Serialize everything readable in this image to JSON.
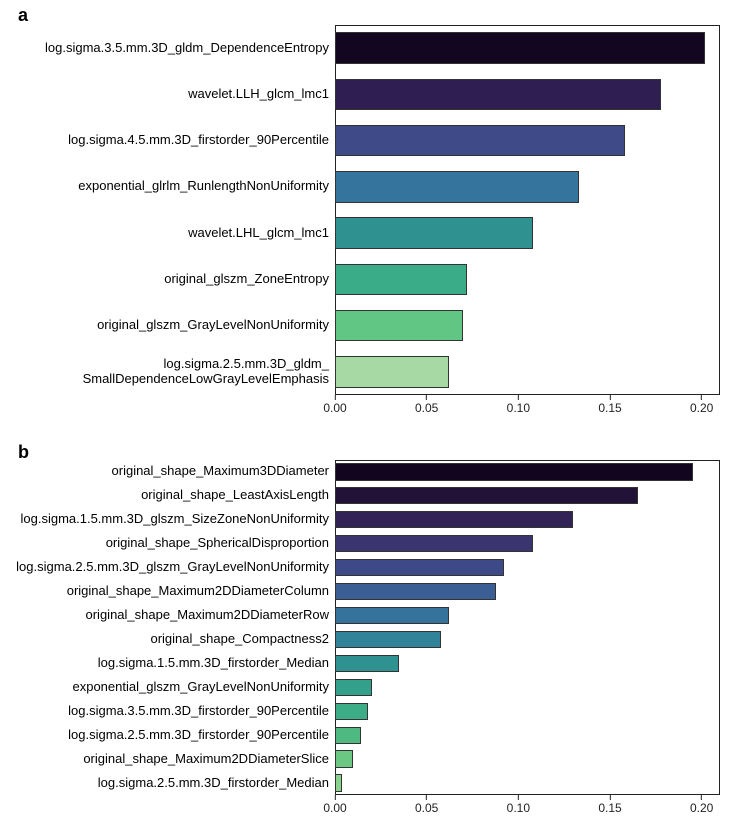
{
  "panel_a": {
    "label": "a",
    "type": "bar",
    "xlim": [
      0,
      0.21
    ],
    "xticks": [
      0.0,
      0.05,
      0.1,
      0.15,
      0.2
    ],
    "xtick_labels": [
      "0.00",
      "0.05",
      "0.10",
      "0.15",
      "0.20"
    ],
    "label_fontsize": 13,
    "tick_fontsize": 12,
    "bar_border_color": "#333333",
    "background_color": "#ffffff",
    "bars": [
      {
        "label": "log.sigma.3.5.mm.3D_gldm_DependenceEntropy",
        "value": 0.202,
        "color": "#130621"
      },
      {
        "label": "wavelet.LLH_glcm_lmc1",
        "value": 0.178,
        "color": "#2f1e52"
      },
      {
        "label": "log.sigma.4.5.mm.3D_firstorder_90Percentile",
        "value": 0.158,
        "color": "#3f4a88"
      },
      {
        "label": "exponential_glrlm_RunlengthNonUniformity",
        "value": 0.133,
        "color": "#34749d"
      },
      {
        "label": "wavelet.LHL_glcm_lmc1",
        "value": 0.108,
        "color": "#2f9291"
      },
      {
        "label": "original_glszm_ZoneEntropy",
        "value": 0.072,
        "color": "#3aac87"
      },
      {
        "label": "original_glszm_GrayLevelNonUniformity",
        "value": 0.07,
        "color": "#61c583"
      },
      {
        "label": "log.sigma.2.5.mm.3D_gldm_\nSmallDependenceLowGrayLevelEmphasis",
        "value": 0.062,
        "color": "#a6d9a3"
      }
    ]
  },
  "panel_b": {
    "label": "b",
    "type": "bar",
    "xlim": [
      0,
      0.21
    ],
    "xticks": [
      0.0,
      0.05,
      0.1,
      0.15,
      0.2
    ],
    "xtick_labels": [
      "0.00",
      "0.05",
      "0.10",
      "0.15",
      "0.20"
    ],
    "label_fontsize": 13,
    "tick_fontsize": 12,
    "bar_border_color": "#333333",
    "background_color": "#ffffff",
    "bars": [
      {
        "label": "original_shape_Maximum3DDiameter",
        "value": 0.195,
        "color": "#120520"
      },
      {
        "label": "original_shape_LeastAxisLength",
        "value": 0.165,
        "color": "#231238"
      },
      {
        "label": "log.sigma.1.5.mm.3D_glszm_SizeZoneNonUniformity",
        "value": 0.13,
        "color": "#312355"
      },
      {
        "label": "original_shape_SphericalDisproportion",
        "value": 0.108,
        "color": "#3a356f"
      },
      {
        "label": "log.sigma.2.5.mm.3D_glszm_GrayLevelNonUniformity",
        "value": 0.092,
        "color": "#3e4a87"
      },
      {
        "label": "original_shape_Maximum2DDiameterColumn",
        "value": 0.088,
        "color": "#3b5f95"
      },
      {
        "label": "original_shape_Maximum2DDiameterRow",
        "value": 0.062,
        "color": "#35729c"
      },
      {
        "label": "original_shape_Compactness2",
        "value": 0.058,
        "color": "#31839a"
      },
      {
        "label": "log.sigma.1.5.mm.3D_firstorder_Median",
        "value": 0.035,
        "color": "#2f9291"
      },
      {
        "label": "exponential_glszm_GrayLevelNonUniformity",
        "value": 0.02,
        "color": "#32a08b"
      },
      {
        "label": "log.sigma.3.5.mm.3D_firstorder_90Percentile",
        "value": 0.018,
        "color": "#3cad86"
      },
      {
        "label": "log.sigma.2.5.mm.3D_firstorder_90Percentile",
        "value": 0.014,
        "color": "#4eba82"
      },
      {
        "label": "original_shape_Maximum2DDiameterSlice",
        "value": 0.01,
        "color": "#6bc883"
      },
      {
        "label": "log.sigma.2.5.mm.3D_firstorder_Median",
        "value": 0.004,
        "color": "#8bd28f"
      }
    ]
  }
}
